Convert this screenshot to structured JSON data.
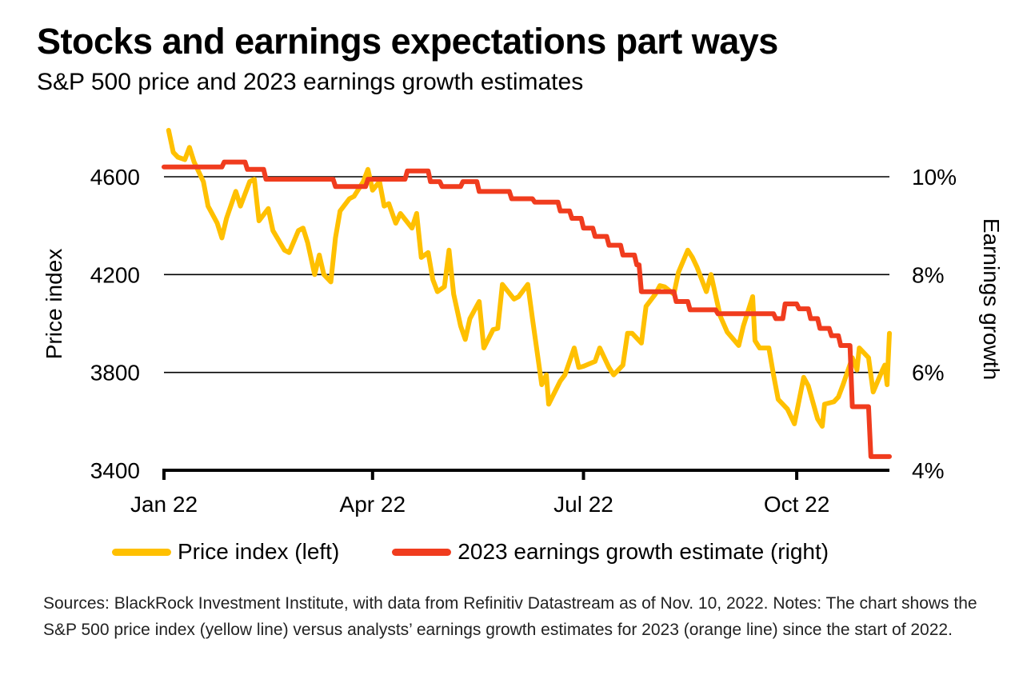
{
  "header": {
    "title": "Stocks and earnings expectations part ways",
    "subtitle": "S&P 500 price and 2023 earnings growth estimates"
  },
  "footer": {
    "notes": "Sources: BlackRock Investment Institute, with data from Refinitiv Datastream as of Nov. 10, 2022.  Notes: The chart shows the S&P 500 price index (yellow line) versus analysts’ earnings growth estimates for 2023 (orange line) since the start of 2022."
  },
  "chart_data": {
    "type": "line",
    "title": "Stocks and earnings expectations part ways",
    "subtitle": "S&P 500 price and 2023 earnings growth estimates",
    "xlabel": "",
    "ylabel_left": "Price index",
    "ylabel_right": "Earnings growth",
    "x_range": [
      "2022-01-01",
      "2022-11-10"
    ],
    "x_ticks": [
      {
        "date": "2022-01-01",
        "label": "Jan 22"
      },
      {
        "date": "2022-04-01",
        "label": "Apr 22"
      },
      {
        "date": "2022-07-01",
        "label": "Jul 22"
      },
      {
        "date": "2022-10-01",
        "label": "Oct 22"
      }
    ],
    "ylim_left": [
      3400,
      4800
    ],
    "y_ticks_left": [
      3400,
      3800,
      4200,
      4600
    ],
    "ylim_right": [
      4,
      11.2
    ],
    "y_ticks_right": [
      {
        "value": 4,
        "label": "4%"
      },
      {
        "value": 6,
        "label": "6%"
      },
      {
        "value": 8,
        "label": "8%"
      },
      {
        "value": 10,
        "label": "10%"
      }
    ],
    "grid": "horizontal",
    "legend_position": "bottom",
    "colors": {
      "price": "#FFC000",
      "earnings": "#F03C1E"
    },
    "series": [
      {
        "name": "Price index (left)",
        "axis": "left",
        "color": "#FFC000",
        "points": [
          [
            "2022-01-03",
            4790
          ],
          [
            "2022-01-05",
            4700
          ],
          [
            "2022-01-07",
            4680
          ],
          [
            "2022-01-10",
            4670
          ],
          [
            "2022-01-12",
            4720
          ],
          [
            "2022-01-14",
            4660
          ],
          [
            "2022-01-18",
            4580
          ],
          [
            "2022-01-20",
            4480
          ],
          [
            "2022-01-24",
            4410
          ],
          [
            "2022-01-26",
            4350
          ],
          [
            "2022-01-28",
            4430
          ],
          [
            "2022-02-01",
            4540
          ],
          [
            "2022-02-03",
            4480
          ],
          [
            "2022-02-07",
            4580
          ],
          [
            "2022-02-09",
            4590
          ],
          [
            "2022-02-11",
            4420
          ],
          [
            "2022-02-15",
            4470
          ],
          [
            "2022-02-17",
            4380
          ],
          [
            "2022-02-22",
            4300
          ],
          [
            "2022-02-24",
            4290
          ],
          [
            "2022-02-28",
            4380
          ],
          [
            "2022-03-02",
            4390
          ],
          [
            "2022-03-04",
            4330
          ],
          [
            "2022-03-07",
            4200
          ],
          [
            "2022-03-09",
            4280
          ],
          [
            "2022-03-11",
            4200
          ],
          [
            "2022-03-14",
            4170
          ],
          [
            "2022-03-16",
            4350
          ],
          [
            "2022-03-18",
            4460
          ],
          [
            "2022-03-22",
            4510
          ],
          [
            "2022-03-24",
            4520
          ],
          [
            "2022-03-28",
            4580
          ],
          [
            "2022-03-30",
            4630
          ],
          [
            "2022-04-01",
            4545
          ],
          [
            "2022-04-04",
            4580
          ],
          [
            "2022-04-06",
            4480
          ],
          [
            "2022-04-08",
            4490
          ],
          [
            "2022-04-11",
            4410
          ],
          [
            "2022-04-13",
            4450
          ],
          [
            "2022-04-18",
            4390
          ],
          [
            "2022-04-20",
            4450
          ],
          [
            "2022-04-22",
            4270
          ],
          [
            "2022-04-25",
            4290
          ],
          [
            "2022-04-27",
            4180
          ],
          [
            "2022-04-29",
            4130
          ],
          [
            "2022-05-02",
            4150
          ],
          [
            "2022-05-04",
            4300
          ],
          [
            "2022-05-06",
            4120
          ],
          [
            "2022-05-09",
            3990
          ],
          [
            "2022-05-11",
            3935
          ],
          [
            "2022-05-13",
            4020
          ],
          [
            "2022-05-17",
            4090
          ],
          [
            "2022-05-19",
            3900
          ],
          [
            "2022-05-23",
            3975
          ],
          [
            "2022-05-25",
            3980
          ],
          [
            "2022-05-27",
            4160
          ],
          [
            "2022-06-01",
            4100
          ],
          [
            "2022-06-03",
            4110
          ],
          [
            "2022-06-07",
            4160
          ],
          [
            "2022-06-09",
            4020
          ],
          [
            "2022-06-13",
            3750
          ],
          [
            "2022-06-15",
            3790
          ],
          [
            "2022-06-16",
            3670
          ],
          [
            "2022-06-21",
            3765
          ],
          [
            "2022-06-23",
            3790
          ],
          [
            "2022-06-27",
            3900
          ],
          [
            "2022-06-29",
            3820
          ],
          [
            "2022-07-01",
            3825
          ],
          [
            "2022-07-06",
            3845
          ],
          [
            "2022-07-08",
            3900
          ],
          [
            "2022-07-12",
            3820
          ],
          [
            "2022-07-14",
            3790
          ],
          [
            "2022-07-18",
            3830
          ],
          [
            "2022-07-20",
            3960
          ],
          [
            "2022-07-22",
            3960
          ],
          [
            "2022-07-26",
            3920
          ],
          [
            "2022-07-28",
            4070
          ],
          [
            "2022-08-01",
            4120
          ],
          [
            "2022-08-03",
            4155
          ],
          [
            "2022-08-05",
            4150
          ],
          [
            "2022-08-09",
            4120
          ],
          [
            "2022-08-11",
            4210
          ],
          [
            "2022-08-15",
            4300
          ],
          [
            "2022-08-17",
            4270
          ],
          [
            "2022-08-19",
            4230
          ],
          [
            "2022-08-23",
            4130
          ],
          [
            "2022-08-25",
            4200
          ],
          [
            "2022-08-29",
            4030
          ],
          [
            "2022-09-01",
            3965
          ],
          [
            "2022-09-06",
            3910
          ],
          [
            "2022-09-08",
            3990
          ],
          [
            "2022-09-12",
            4110
          ],
          [
            "2022-09-13",
            3930
          ],
          [
            "2022-09-15",
            3900
          ],
          [
            "2022-09-19",
            3900
          ],
          [
            "2022-09-21",
            3790
          ],
          [
            "2022-09-23",
            3690
          ],
          [
            "2022-09-27",
            3650
          ],
          [
            "2022-09-30",
            3590
          ],
          [
            "2022-10-04",
            3780
          ],
          [
            "2022-10-06",
            3745
          ],
          [
            "2022-10-10",
            3610
          ],
          [
            "2022-10-12",
            3580
          ],
          [
            "2022-10-13",
            3670
          ],
          [
            "2022-10-17",
            3680
          ],
          [
            "2022-10-19",
            3700
          ],
          [
            "2022-10-21",
            3750
          ],
          [
            "2022-10-25",
            3860
          ],
          [
            "2022-10-27",
            3810
          ],
          [
            "2022-10-28",
            3900
          ],
          [
            "2022-11-01",
            3860
          ],
          [
            "2022-11-03",
            3720
          ],
          [
            "2022-11-07",
            3810
          ],
          [
            "2022-11-08",
            3830
          ],
          [
            "2022-11-09",
            3750
          ],
          [
            "2022-11-10",
            3960
          ]
        ]
      },
      {
        "name": "2023 earnings growth estimate (right)",
        "axis": "right",
        "color": "#F03C1E",
        "step": true,
        "points": [
          [
            "2022-01-01",
            10.2
          ],
          [
            "2022-01-26",
            10.2
          ],
          [
            "2022-01-27",
            10.3
          ],
          [
            "2022-02-05",
            10.3
          ],
          [
            "2022-02-06",
            10.15
          ],
          [
            "2022-02-13",
            10.15
          ],
          [
            "2022-02-14",
            9.95
          ],
          [
            "2022-03-15",
            9.95
          ],
          [
            "2022-03-16",
            9.8
          ],
          [
            "2022-03-29",
            9.8
          ],
          [
            "2022-03-30",
            9.95
          ],
          [
            "2022-04-15",
            9.95
          ],
          [
            "2022-04-16",
            10.12
          ],
          [
            "2022-04-25",
            10.12
          ],
          [
            "2022-04-26",
            9.9
          ],
          [
            "2022-04-30",
            9.9
          ],
          [
            "2022-05-01",
            9.8
          ],
          [
            "2022-05-09",
            9.8
          ],
          [
            "2022-05-10",
            9.9
          ],
          [
            "2022-05-16",
            9.9
          ],
          [
            "2022-05-17",
            9.7
          ],
          [
            "2022-05-30",
            9.7
          ],
          [
            "2022-05-31",
            9.55
          ],
          [
            "2022-06-09",
            9.55
          ],
          [
            "2022-06-10",
            9.48
          ],
          [
            "2022-06-20",
            9.48
          ],
          [
            "2022-06-21",
            9.3
          ],
          [
            "2022-06-25",
            9.3
          ],
          [
            "2022-06-26",
            9.15
          ],
          [
            "2022-06-30",
            9.15
          ],
          [
            "2022-07-01",
            8.95
          ],
          [
            "2022-07-05",
            8.95
          ],
          [
            "2022-07-06",
            8.78
          ],
          [
            "2022-07-11",
            8.78
          ],
          [
            "2022-07-12",
            8.6
          ],
          [
            "2022-07-17",
            8.6
          ],
          [
            "2022-07-18",
            8.4
          ],
          [
            "2022-07-23",
            8.4
          ],
          [
            "2022-07-24",
            8.2
          ],
          [
            "2022-07-25",
            8.2
          ],
          [
            "2022-07-26",
            7.65
          ],
          [
            "2022-08-09",
            7.65
          ],
          [
            "2022-08-10",
            7.45
          ],
          [
            "2022-08-15",
            7.45
          ],
          [
            "2022-08-16",
            7.28
          ],
          [
            "2022-08-27",
            7.28
          ],
          [
            "2022-08-28",
            7.2
          ],
          [
            "2022-09-21",
            7.2
          ],
          [
            "2022-09-22",
            7.1
          ],
          [
            "2022-09-25",
            7.1
          ],
          [
            "2022-09-26",
            7.4
          ],
          [
            "2022-10-01",
            7.4
          ],
          [
            "2022-10-02",
            7.3
          ],
          [
            "2022-10-06",
            7.3
          ],
          [
            "2022-10-07",
            7.1
          ],
          [
            "2022-10-10",
            7.1
          ],
          [
            "2022-10-11",
            6.9
          ],
          [
            "2022-10-15",
            6.9
          ],
          [
            "2022-10-16",
            6.75
          ],
          [
            "2022-10-19",
            6.75
          ],
          [
            "2022-10-20",
            6.55
          ],
          [
            "2022-10-24",
            6.55
          ],
          [
            "2022-10-25",
            5.3
          ],
          [
            "2022-11-01",
            5.3
          ],
          [
            "2022-11-02",
            4.28
          ],
          [
            "2022-11-10",
            4.28
          ]
        ]
      }
    ]
  }
}
